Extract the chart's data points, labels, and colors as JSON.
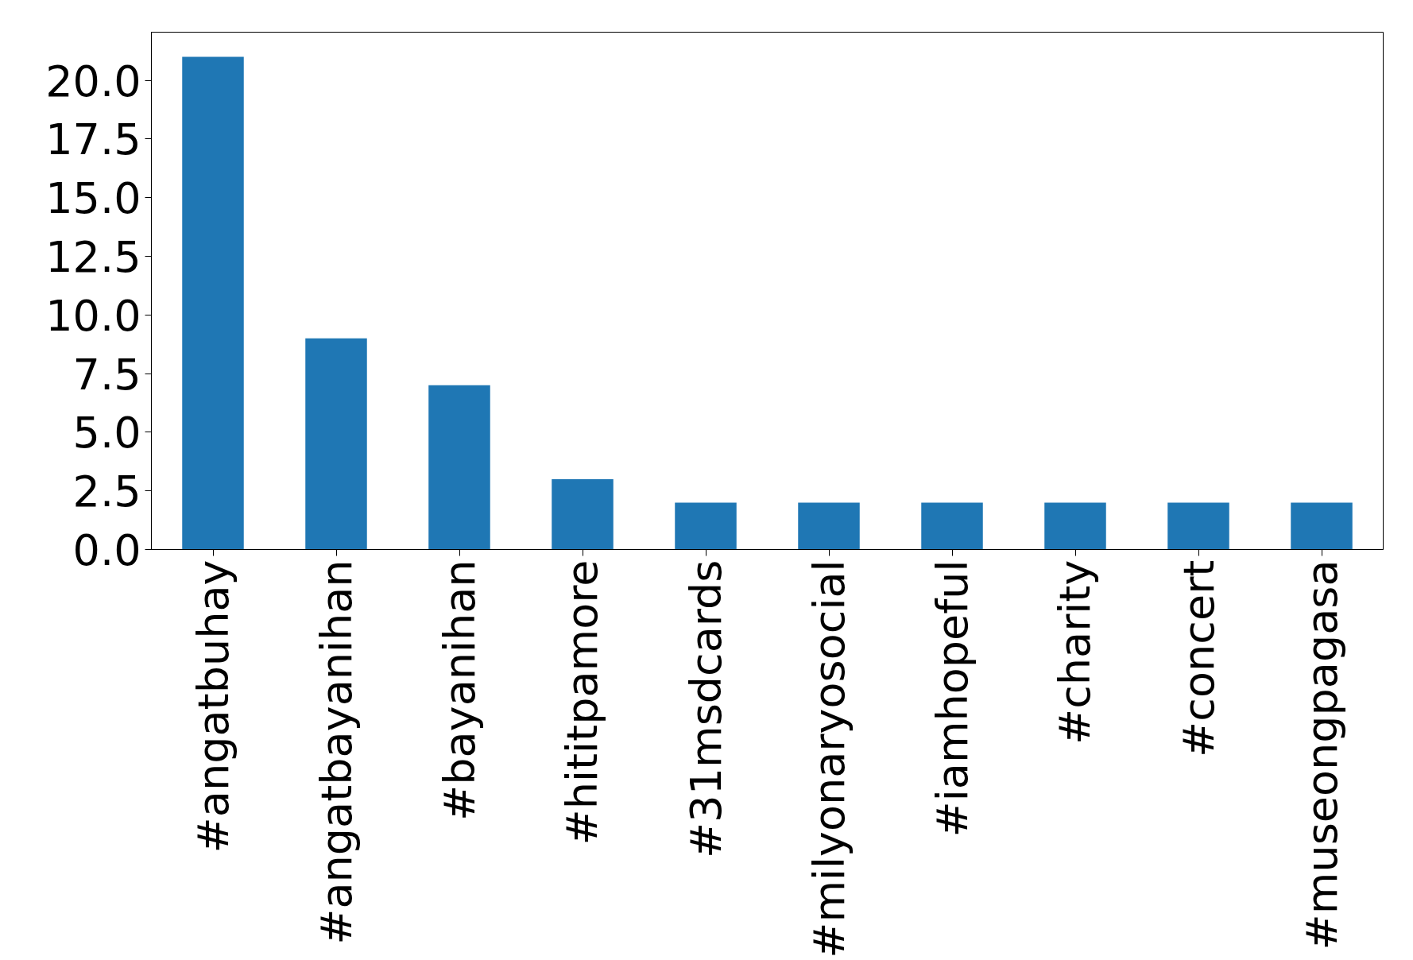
{
  "chart_data": {
    "type": "bar",
    "categories": [
      "#angatbuhay",
      "#angatbayanihan",
      "#bayanihan",
      "#hititpamore",
      "#31msdcards",
      "#milyonaryosocial",
      "#iamhopeful",
      "#charity",
      "#concert",
      "#museongpagasa"
    ],
    "values": [
      21,
      9,
      7,
      3,
      2,
      2,
      2,
      2,
      2,
      2
    ],
    "color": "#1f77b4",
    "ylim": [
      0,
      22.05
    ],
    "yticks": [
      {
        "value": 0,
        "label": "0.0"
      },
      {
        "value": 2.5,
        "label": "2.5"
      },
      {
        "value": 5,
        "label": "5.0"
      },
      {
        "value": 7.5,
        "label": "7.5"
      },
      {
        "value": 10,
        "label": "10.0"
      },
      {
        "value": 12.5,
        "label": "12.5"
      },
      {
        "value": 15,
        "label": "15.0"
      },
      {
        "value": 17.5,
        "label": "17.5"
      },
      {
        "value": 20,
        "label": "20.0"
      }
    ],
    "grid": false
  }
}
